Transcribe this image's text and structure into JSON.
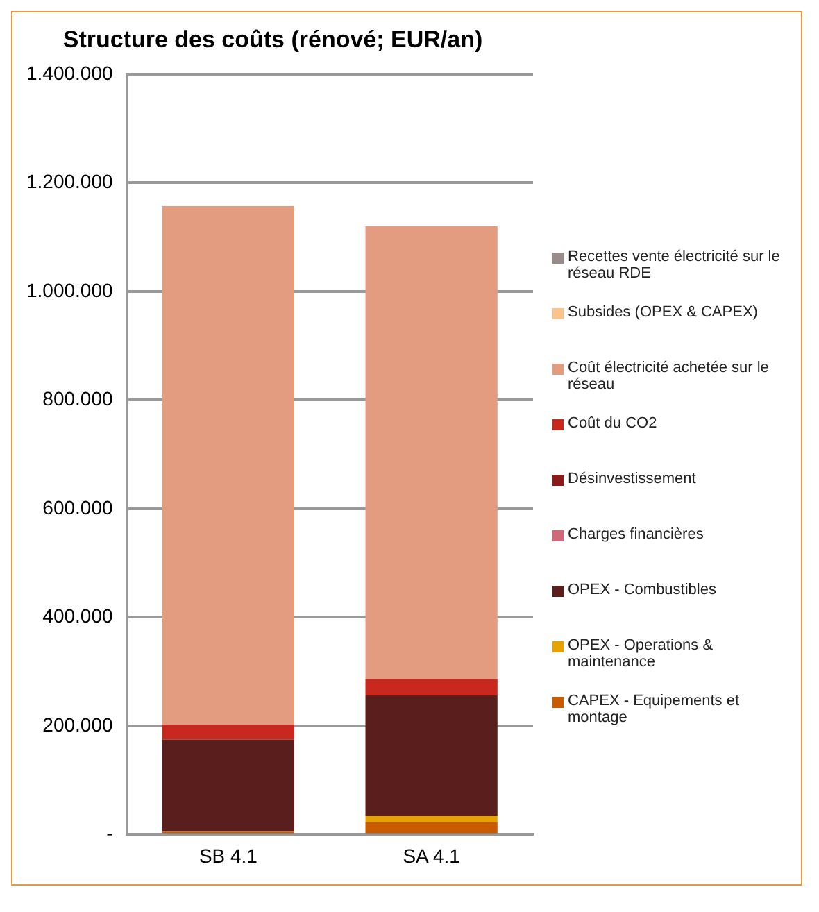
{
  "chart_data": {
    "type": "bar",
    "title": "Structure des coûts (rénové; EUR/an)",
    "categories": [
      "SB 4.1",
      "SA 4.1"
    ],
    "stacked": true,
    "legend": "right",
    "grid": "y",
    "ylim": [
      0,
      1400000
    ],
    "yticks": [
      {
        "value": 0,
        "label": "-"
      },
      {
        "value": 200000,
        "label": "200.000"
      },
      {
        "value": 400000,
        "label": "400.000"
      },
      {
        "value": 600000,
        "label": "600.000"
      },
      {
        "value": 800000,
        "label": "800.000"
      },
      {
        "value": 1000000,
        "label": "1.000.000"
      },
      {
        "value": 1200000,
        "label": "1.200.000"
      },
      {
        "value": 1400000,
        "label": "1.400.000"
      }
    ],
    "series": [
      {
        "name": "CAPEX - Equipements et montage",
        "color": "#c85a00",
        "values": [
          5000,
          23000
        ]
      },
      {
        "name": "OPEX - Operations & maintenance",
        "color": "#e8a200",
        "values": [
          0,
          11000
        ]
      },
      {
        "name": "OPEX - Combustibles",
        "color": "#5a1f1c",
        "values": [
          170000,
          222000
        ]
      },
      {
        "name": "Charges financières",
        "color": "#d06a78",
        "values": [
          0,
          0
        ]
      },
      {
        "name": "Désinvestissement",
        "color": "#8b1a1a",
        "values": [
          0,
          0
        ]
      },
      {
        "name": "Coût du CO2",
        "color": "#c8281e",
        "values": [
          27000,
          30000
        ]
      },
      {
        "name": "Coût électricité achetée sur le réseau",
        "color": "#e39c80",
        "values": [
          955000,
          834000
        ]
      },
      {
        "name": "Subsides (OPEX & CAPEX)",
        "color": "#f9c38a",
        "values": [
          0,
          0
        ]
      },
      {
        "name": "Recettes vente électricité sur le réseau RDE",
        "color": "#9b8a8a",
        "values": [
          0,
          0
        ]
      }
    ]
  }
}
